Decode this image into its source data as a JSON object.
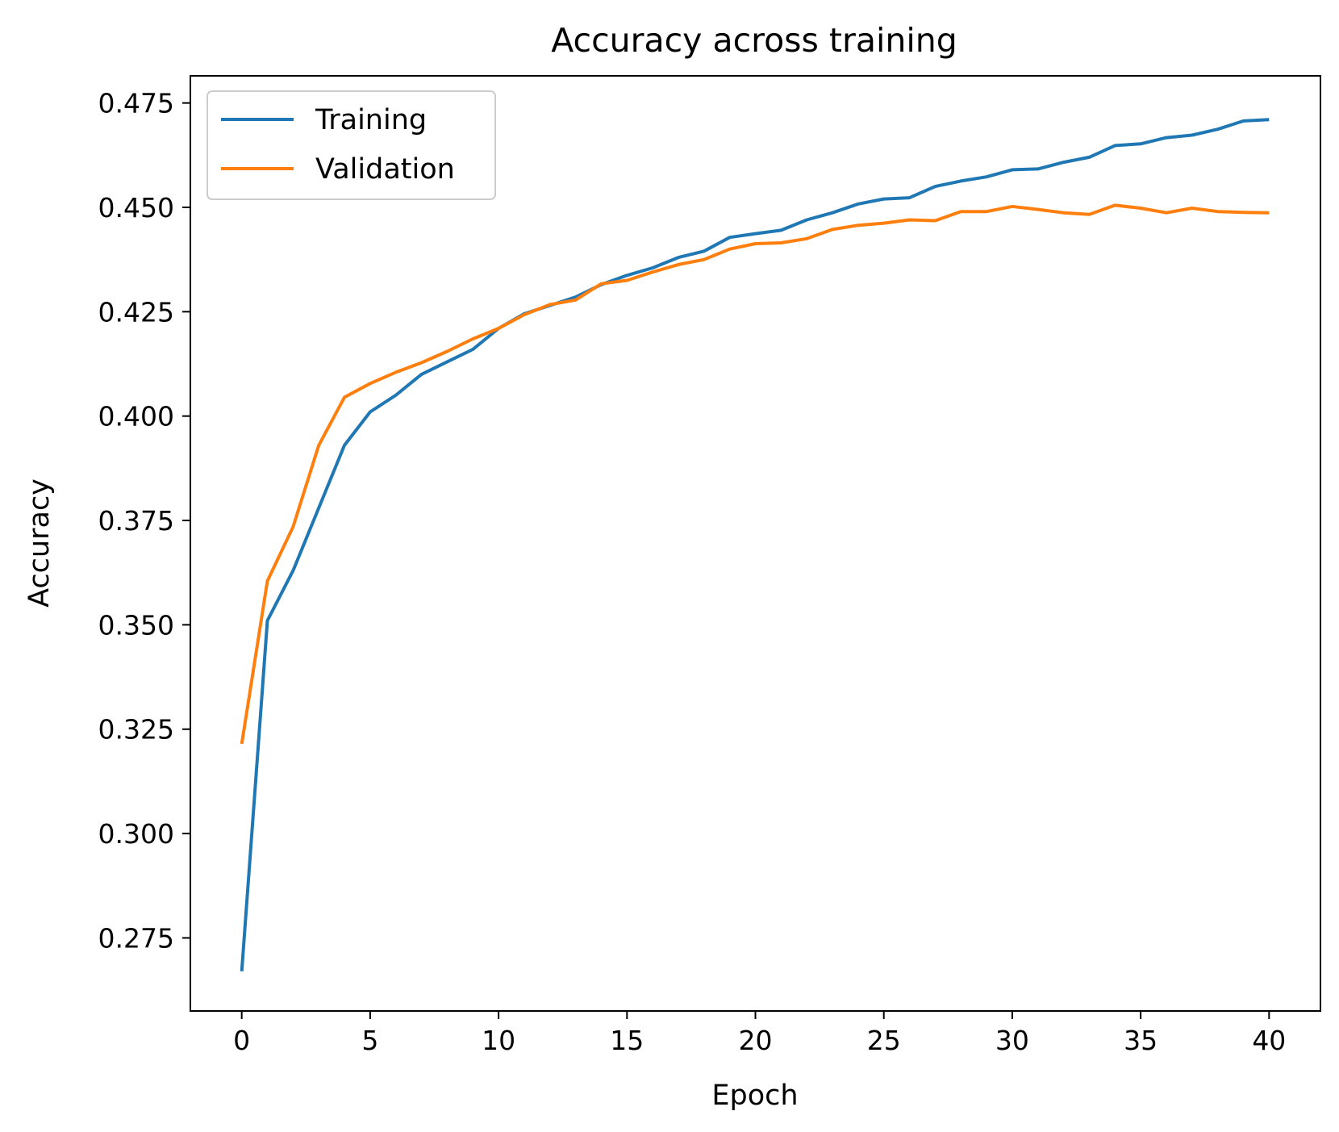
{
  "chart_data": {
    "type": "line",
    "title": "Accuracy across training",
    "xlabel": "Epoch",
    "ylabel": "Accuracy",
    "xlim": [
      -2,
      42
    ],
    "ylim": [
      0.2575,
      0.4815
    ],
    "xticks": [
      0,
      5,
      10,
      15,
      20,
      25,
      30,
      35,
      40
    ],
    "xtick_labels": [
      "0",
      "5",
      "10",
      "15",
      "20",
      "25",
      "30",
      "35",
      "40"
    ],
    "yticks": [
      0.275,
      0.3,
      0.325,
      0.35,
      0.375,
      0.4,
      0.425,
      0.45,
      0.475
    ],
    "ytick_labels": [
      "0.275",
      "0.300",
      "0.325",
      "0.350",
      "0.375",
      "0.400",
      "0.425",
      "0.450",
      "0.475"
    ],
    "grid": false,
    "legend_position": "top-left",
    "x": [
      0,
      1,
      2,
      3,
      4,
      5,
      6,
      7,
      8,
      9,
      10,
      11,
      12,
      13,
      14,
      15,
      16,
      17,
      18,
      19,
      20,
      21,
      22,
      23,
      24,
      25,
      26,
      27,
      28,
      29,
      30,
      31,
      32,
      33,
      34,
      35,
      36,
      37,
      38,
      39,
      40
    ],
    "series": [
      {
        "name": "Training",
        "color": "#1f77b4",
        "values": [
          0.267,
          0.351,
          0.363,
          0.378,
          0.393,
          0.401,
          0.405,
          0.41,
          0.413,
          0.416,
          0.421,
          0.4245,
          0.4265,
          0.4285,
          0.4315,
          0.4337,
          0.4355,
          0.438,
          0.4395,
          0.4428,
          0.4437,
          0.4445,
          0.447,
          0.4487,
          0.4508,
          0.452,
          0.4523,
          0.455,
          0.4563,
          0.4573,
          0.459,
          0.4592,
          0.4608,
          0.462,
          0.4648,
          0.4652,
          0.4667,
          0.4673,
          0.4687,
          0.4707,
          0.471
        ]
      },
      {
        "name": "Validation",
        "color": "#ff7f0e",
        "values": [
          0.3215,
          0.3605,
          0.3735,
          0.393,
          0.4045,
          0.4078,
          0.4105,
          0.4128,
          0.4155,
          0.4185,
          0.421,
          0.4243,
          0.4267,
          0.4278,
          0.4317,
          0.4325,
          0.4345,
          0.4363,
          0.4375,
          0.44,
          0.4413,
          0.4415,
          0.4425,
          0.4447,
          0.4457,
          0.4462,
          0.447,
          0.4468,
          0.449,
          0.449,
          0.4502,
          0.4495,
          0.4487,
          0.4483,
          0.4505,
          0.4498,
          0.4487,
          0.4498,
          0.449,
          0.4488,
          0.4487
        ]
      }
    ]
  }
}
